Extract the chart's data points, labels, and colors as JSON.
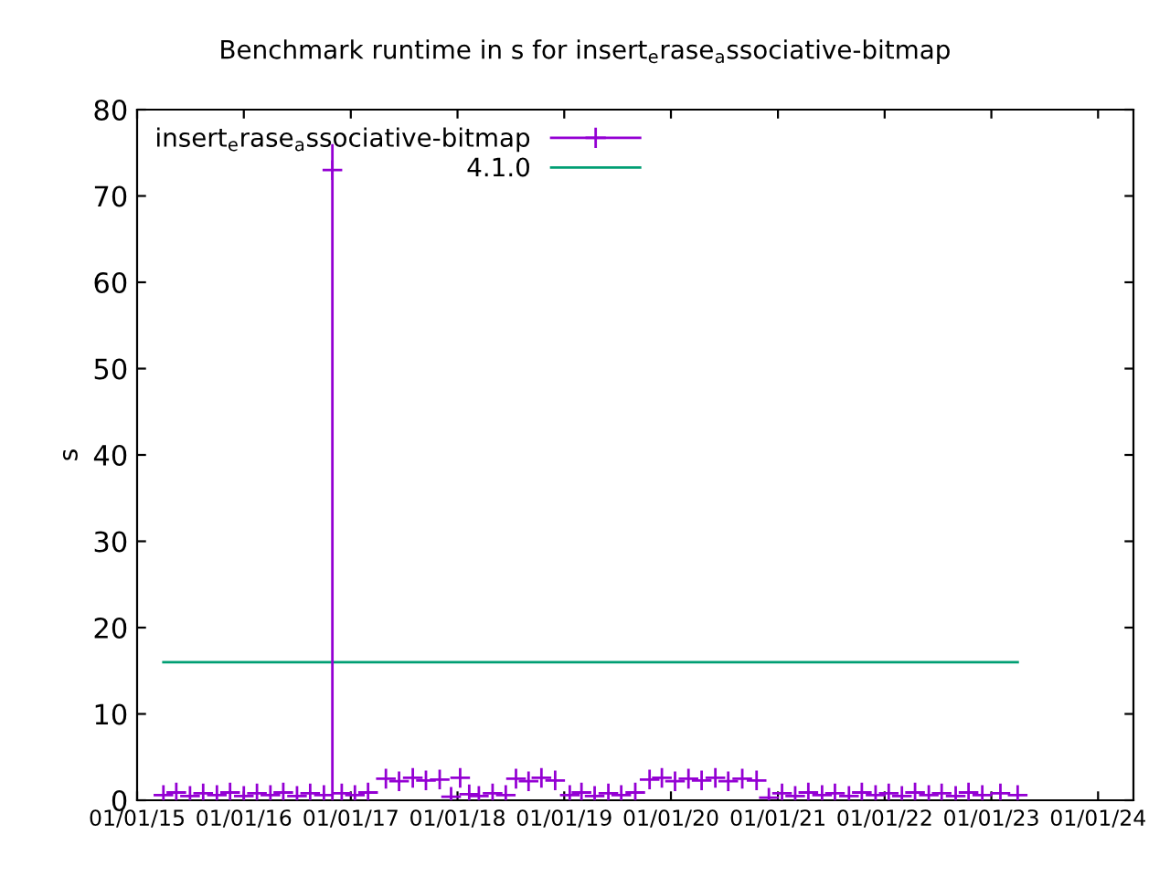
{
  "chart_data": {
    "type": "scatter",
    "title": "Benchmark runtime in s for insert$_{e}$rase$_{a}$ssociative-bitmap",
    "ylabel": "s",
    "xlim": [
      "2015-01-01",
      "2024-05-01"
    ],
    "xticks": [
      {
        "value": "2015-01-01",
        "label": "01/01/15"
      },
      {
        "value": "2016-01-01",
        "label": "01/01/16"
      },
      {
        "value": "2017-01-01",
        "label": "01/01/17"
      },
      {
        "value": "2018-01-01",
        "label": "01/01/18"
      },
      {
        "value": "2019-01-01",
        "label": "01/01/19"
      },
      {
        "value": "2020-01-01",
        "label": "01/01/20"
      },
      {
        "value": "2021-01-01",
        "label": "01/01/21"
      },
      {
        "value": "2022-01-01",
        "label": "01/01/22"
      },
      {
        "value": "2023-01-01",
        "label": "01/01/23"
      },
      {
        "value": "2024-01-01",
        "label": "01/01/24"
      }
    ],
    "ylim": [
      0,
      80
    ],
    "yticks": [
      0,
      10,
      20,
      30,
      40,
      50,
      60,
      70,
      80
    ],
    "grid": false,
    "legend": "top left",
    "series": [
      {
        "name": "insert$_{e}$rase$_{a}$ssociative-bitmap",
        "color": "#9400d3",
        "marker": "cross",
        "x": [
          "2015-04-01",
          "2015-05-15",
          "2015-07-01",
          "2015-08-15",
          "2015-10-01",
          "2015-11-15",
          "2016-01-01",
          "2016-02-15",
          "2016-04-01",
          "2016-05-15",
          "2016-07-01",
          "2016-08-15",
          "2016-10-01",
          "2016-10-30",
          "2016-12-01",
          "2017-01-15",
          "2017-03-01",
          "2017-05-01",
          "2017-06-15",
          "2017-08-01",
          "2017-09-15",
          "2017-11-01",
          "2017-12-10",
          "2018-01-10",
          "2018-02-10",
          "2018-03-15",
          "2018-05-01",
          "2018-06-15",
          "2018-07-20",
          "2018-09-01",
          "2018-10-15",
          "2018-12-01",
          "2019-01-20",
          "2019-03-01",
          "2019-04-15",
          "2019-06-01",
          "2019-07-15",
          "2019-09-01",
          "2019-10-20",
          "2019-12-01",
          "2020-01-15",
          "2020-03-01",
          "2020-04-15",
          "2020-06-01",
          "2020-07-15",
          "2020-09-01",
          "2020-10-20",
          "2020-12-01",
          "2021-01-15",
          "2021-03-01",
          "2021-04-15",
          "2021-06-01",
          "2021-07-15",
          "2021-09-01",
          "2021-10-15",
          "2021-12-01",
          "2022-01-15",
          "2022-03-01",
          "2022-04-15",
          "2022-06-01",
          "2022-07-15",
          "2022-09-01",
          "2022-10-15",
          "2022-12-01",
          "2023-02-01",
          "2023-04-01"
        ],
        "values": [
          0.6,
          0.9,
          0.5,
          0.8,
          0.6,
          0.9,
          0.5,
          0.8,
          0.6,
          0.9,
          0.5,
          0.8,
          0.6,
          73,
          0.8,
          0.6,
          0.9,
          2.5,
          2.2,
          2.6,
          2.3,
          2.4,
          0.4,
          2.6,
          0.7,
          0.5,
          0.8,
          0.6,
          2.5,
          2.2,
          2.6,
          2.3,
          0.6,
          0.9,
          0.5,
          0.8,
          0.6,
          0.9,
          2.4,
          2.6,
          2.2,
          2.5,
          2.3,
          2.6,
          2.2,
          2.5,
          2.3,
          0.3,
          0.8,
          0.5,
          0.9,
          0.6,
          0.8,
          0.5,
          0.9,
          0.6,
          0.8,
          0.5,
          0.9,
          0.6,
          0.8,
          0.5,
          0.9,
          0.6,
          0.8,
          0.6
        ],
        "errors": [
          null,
          null,
          null,
          null,
          null,
          null,
          null,
          null,
          null,
          null,
          null,
          null,
          null,
          [
            0,
            76
          ],
          null,
          null,
          null,
          null,
          null,
          null,
          null,
          null,
          null,
          null,
          null,
          null,
          null,
          null,
          null,
          null,
          null,
          null,
          null,
          null,
          null,
          null,
          null,
          null,
          null,
          null,
          null,
          null,
          null,
          null,
          null,
          null,
          null,
          null,
          null,
          null,
          null,
          null,
          null,
          null,
          null,
          null,
          null,
          null,
          null,
          null,
          null,
          null,
          null,
          null,
          null,
          null
        ]
      },
      {
        "name": "4.1.0",
        "color": "#009e73",
        "type": "line",
        "x": [
          "2015-04-01",
          "2023-04-01"
        ],
        "values": [
          16,
          16
        ]
      }
    ]
  }
}
